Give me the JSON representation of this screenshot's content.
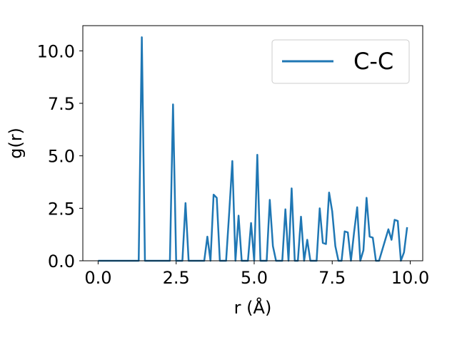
{
  "chart_data": {
    "type": "line",
    "title": "",
    "xlabel": "r (Å)",
    "ylabel": "g(r)",
    "xlim": [
      -0.49,
      10.4
    ],
    "ylim": [
      0,
      11.2
    ],
    "xticks": [
      0.0,
      2.5,
      5.0,
      7.5,
      10.0
    ],
    "xtick_labels": [
      "0.0",
      "2.5",
      "5.0",
      "7.5",
      "10.0"
    ],
    "yticks": [
      0.0,
      2.5,
      5.0,
      7.5,
      10.0
    ],
    "ytick_labels": [
      "0.0",
      "2.5",
      "5.0",
      "7.5",
      "10.0"
    ],
    "grid": false,
    "legend_position": "top-right",
    "line_color": "#1f77b4",
    "series": [
      {
        "name": "C-C",
        "x": [
          0.0,
          0.1,
          0.2,
          0.3,
          0.4,
          0.5,
          0.6,
          0.7,
          0.8,
          0.9,
          1.0,
          1.1,
          1.2,
          1.3,
          1.4,
          1.5,
          1.6,
          1.7,
          1.8,
          1.9,
          2.0,
          2.1,
          2.2,
          2.3,
          2.4,
          2.5,
          2.6,
          2.7,
          2.8,
          2.9,
          3.0,
          3.1,
          3.2,
          3.3,
          3.4,
          3.5,
          3.6,
          3.7,
          3.8,
          3.9,
          4.0,
          4.1,
          4.2,
          4.3,
          4.4,
          4.5,
          4.6,
          4.7,
          4.8,
          4.9,
          5.0,
          5.1,
          5.2,
          5.3,
          5.4,
          5.5,
          5.6,
          5.7,
          5.8,
          5.9,
          6.0,
          6.1,
          6.2,
          6.3,
          6.4,
          6.5,
          6.6,
          6.7,
          6.8,
          6.9,
          7.0,
          7.1,
          7.2,
          7.3,
          7.4,
          7.5,
          7.6,
          7.7,
          7.8,
          7.9,
          8.0,
          8.1,
          8.2,
          8.3,
          8.4,
          8.5,
          8.6,
          8.7,
          8.8,
          8.9,
          9.0,
          9.1,
          9.2,
          9.3,
          9.4,
          9.5,
          9.6,
          9.7,
          9.8,
          9.9
        ],
        "y": [
          0,
          0,
          0,
          0,
          0,
          0,
          0,
          0,
          0,
          0,
          0,
          0,
          0,
          0,
          10.65,
          0,
          0,
          0,
          0,
          0,
          0,
          0,
          0,
          0,
          7.45,
          0,
          0,
          0,
          2.75,
          0,
          0,
          0,
          0,
          0,
          0,
          1.15,
          0,
          3.15,
          3.0,
          0,
          0,
          0,
          2.3,
          4.75,
          0,
          2.15,
          0,
          0,
          0,
          1.8,
          0,
          5.05,
          0,
          0,
          0,
          2.9,
          0.7,
          0,
          0,
          0,
          2.45,
          0,
          3.45,
          0,
          0,
          2.1,
          0,
          1.0,
          0,
          0,
          0,
          2.5,
          0.85,
          0.8,
          3.25,
          2.35,
          0.7,
          0,
          0,
          1.4,
          1.35,
          0,
          1.35,
          2.55,
          0,
          0.5,
          3.0,
          1.15,
          1.1,
          0,
          0,
          0.5,
          1.0,
          1.5,
          1.0,
          1.95,
          1.9,
          0,
          0.4,
          1.6
        ]
      }
    ]
  }
}
